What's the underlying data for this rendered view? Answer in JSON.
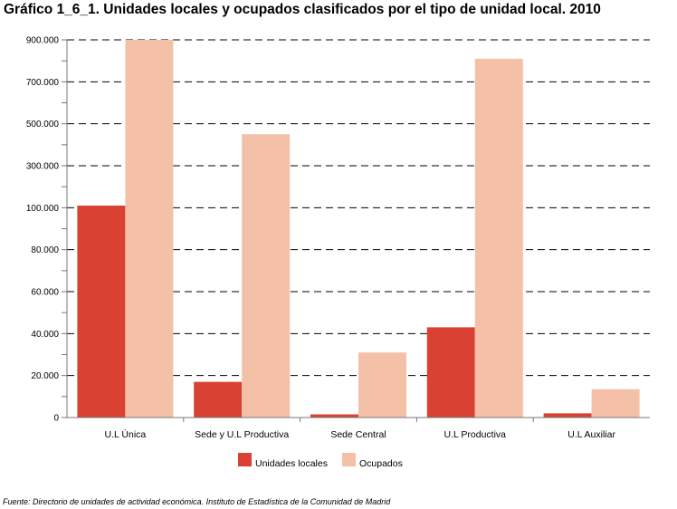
{
  "title": "Gráfico 1_6_1. Unidades locales y ocupados clasificados por el tipo de unidad local. 2010",
  "source": "Fuente: Directorio de unidades de actividad económica. Instituto de Estadística de la Comunidad de Madrid",
  "colors": {
    "unidades": "#d94232",
    "ocupados": "#f4c0a8",
    "grid": "#000000",
    "axis": "#777777"
  },
  "chart_data": {
    "type": "bar",
    "scale": "piecewise-linear",
    "scale_note": "Y axis switches from steps of 20.000 below 100.000 to steps of 200.000 above 100.000",
    "y_ticks": [
      0,
      20000,
      40000,
      60000,
      80000,
      100000,
      300000,
      500000,
      700000,
      900000
    ],
    "y_tick_labels": [
      "0",
      "20.000",
      "40.000",
      "60.000",
      "80.000",
      "100.000",
      "300.000",
      "500.000",
      "700.000",
      "900.000"
    ],
    "ylim": [
      0,
      900000
    ],
    "grid": true,
    "legend_position": "bottom",
    "categories": [
      "U.L Única",
      "Sede y U.L Productiva",
      "Sede Central",
      "U.L Productiva",
      "U.L Auxiliar"
    ],
    "series": [
      {
        "name": "Unidades locales",
        "values": [
          110000,
          17000,
          1500,
          43000,
          2000
        ]
      },
      {
        "name": "Ocupados",
        "values": [
          900000,
          450000,
          31000,
          810000,
          13500
        ]
      }
    ]
  }
}
